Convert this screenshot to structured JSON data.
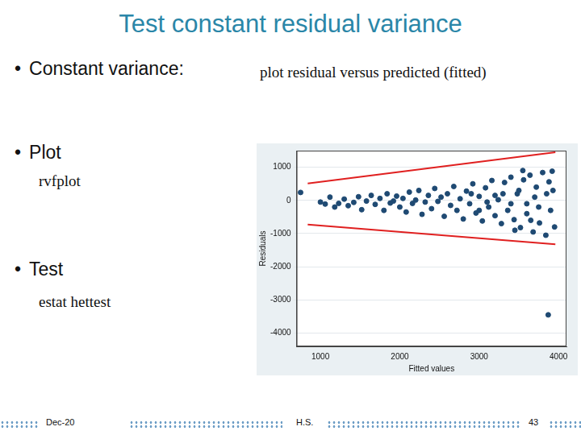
{
  "slide": {
    "title": "Test constant residual variance",
    "bullets": [
      {
        "text": "Constant variance:",
        "note": "plot residual versus predicted (fitted)"
      },
      {
        "text": "Plot",
        "sub": "rvfplot"
      },
      {
        "text": "Test",
        "sub": "estat hettest"
      }
    ],
    "footer": {
      "date": "Dec-20",
      "author": "H.S.",
      "page": 43
    }
  },
  "chart_data": {
    "type": "scatter",
    "x_label": "Fitted values",
    "y_label": "Residuals",
    "xlim": [
      700,
      4100
    ],
    "xticks": [
      1000,
      2000,
      3000,
      4000
    ],
    "ylim": [
      -4400,
      1500
    ],
    "yticks": [
      -4000,
      -3000,
      -2000,
      -1000,
      0,
      1000
    ],
    "grid": true,
    "series": [
      {
        "type": "scatter",
        "color": "#1f4a73",
        "marker": "circle",
        "x": [
          750,
          1000,
          1060,
          1120,
          1180,
          1230,
          1300,
          1350,
          1420,
          1480,
          1520,
          1580,
          1640,
          1690,
          1750,
          1800,
          1840,
          1880,
          1920,
          1960,
          2000,
          2040,
          2080,
          2120,
          2160,
          2200,
          2240,
          2280,
          2320,
          2360,
          2400,
          2440,
          2480,
          2520,
          2560,
          2600,
          2640,
          2680,
          2720,
          2760,
          2800,
          2840,
          2880,
          2920,
          2960,
          3000,
          3040,
          3080,
          3120,
          3160,
          3200,
          3240,
          3280,
          3320,
          3360,
          3400,
          3440,
          3480,
          3520,
          3560,
          3600,
          3640,
          3680,
          3720,
          3760,
          3800,
          3840,
          3880,
          3900,
          3920,
          3700,
          3600,
          3500,
          3400,
          3300,
          3200,
          3100,
          3000,
          2900,
          3750,
          3850,
          3650,
          3550,
          3450,
          3950,
          3930,
          3870
        ],
        "values": [
          240,
          -50,
          -110,
          100,
          -200,
          -90,
          40,
          -160,
          -60,
          110,
          -280,
          -20,
          150,
          -120,
          60,
          -300,
          200,
          -80,
          -20,
          130,
          -200,
          60,
          -350,
          250,
          -90,
          10,
          300,
          -420,
          -50,
          150,
          -250,
          360,
          -30,
          100,
          -480,
          200,
          -150,
          420,
          -300,
          50,
          -560,
          280,
          -100,
          500,
          -380,
          120,
          -620,
          380,
          -200,
          600,
          -460,
          20,
          -700,
          540,
          -300,
          700,
          -580,
          200,
          -820,
          620,
          -400,
          760,
          -950,
          400,
          -680,
          840,
          -1050,
          560,
          -300,
          880,
          100,
          -100,
          300,
          -100,
          200,
          150,
          -50,
          -300,
          200,
          -200,
          200,
          -600,
          900,
          -900,
          -800,
          300,
          -3450
        ]
      },
      {
        "type": "line",
        "color": "#e02020",
        "line_style": "solid",
        "x": [
          840,
          3960
        ],
        "values": [
          510,
          1450
        ]
      },
      {
        "type": "line",
        "color": "#e02020",
        "line_style": "solid",
        "x": [
          840,
          3960
        ],
        "values": [
          -730,
          -1320
        ]
      }
    ]
  }
}
